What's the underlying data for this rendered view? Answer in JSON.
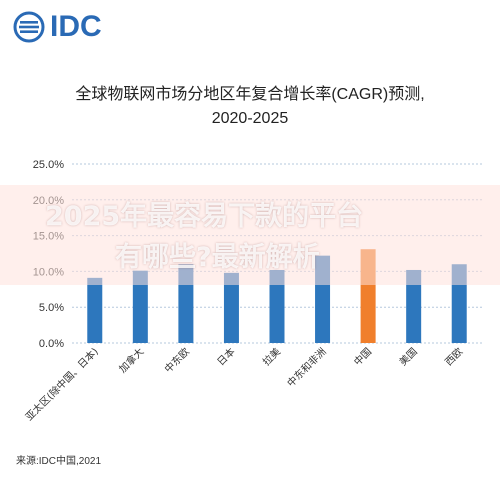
{
  "brand": {
    "logo_text": "IDC",
    "color": "#2a6ab5"
  },
  "title_line1": "全球物联网市场分地区年复合增长率(CAGR)预测,",
  "title_line2": "2020-2025",
  "watermark": {
    "line1": "2025年最容易下款的平台",
    "line2": "有哪些?最新解析"
  },
  "source": "来源:IDC中国,2021",
  "chart_data": {
    "type": "bar",
    "title": "全球物联网市场分地区年复合增长率(CAGR)预测, 2020-2025",
    "categories": [
      "亚太区(除中国、日本)",
      "加拿大",
      "中东欧",
      "日本",
      "拉美",
      "中东和非洲",
      "中国",
      "美国",
      "西欧"
    ],
    "series": [
      {
        "values": [
          9.1,
          10.1,
          11.0,
          9.8,
          10.2,
          12.2,
          13.1,
          10.2,
          11.0
        ]
      }
    ],
    "highlight_index": 6,
    "colors": {
      "default": "#2d77bd",
      "highlight": "#f07f2c",
      "grid": "#b5c8de"
    },
    "ylim": [
      0,
      25
    ],
    "yticks": [
      "0.0%",
      "5.0%",
      "10.0%",
      "15.0%",
      "20.0%",
      "25.0%"
    ],
    "ytick_values": [
      0,
      5,
      10,
      15,
      20,
      25
    ],
    "grid": true,
    "legend": "none"
  }
}
